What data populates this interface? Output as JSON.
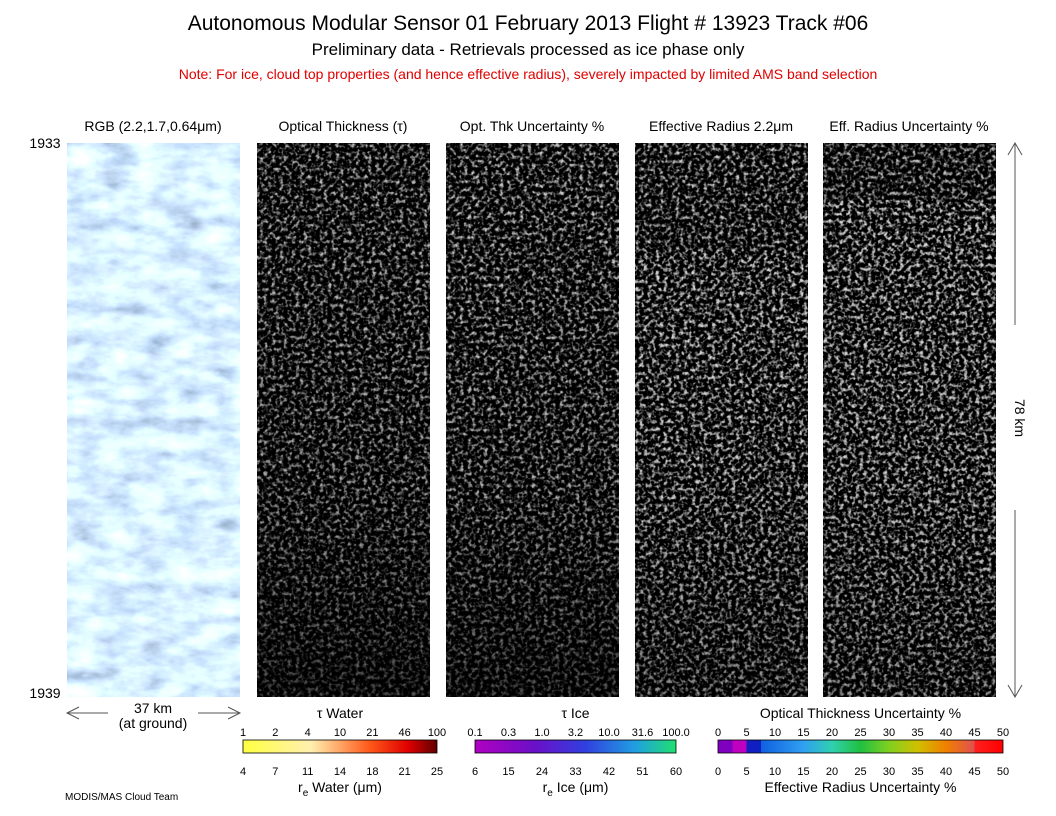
{
  "header": {
    "title": "Autonomous Modular Sensor  01 February 2013  Flight # 13923 Track #06",
    "subtitle": "Preliminary data - Retrievals processed as ice phase only",
    "note": "Note: For ice, cloud top properties (and hence effective radius), severely impacted by limited AMS band selection"
  },
  "panels": [
    {
      "title": "RGB (2.2,1.7,0.64μm)"
    },
    {
      "title": "Optical Thickness (τ)"
    },
    {
      "title": "Opt. Thk Uncertainty %"
    },
    {
      "title": "Effective Radius 2.2μm"
    },
    {
      "title": "Eff. Radius Uncertainty %"
    }
  ],
  "time_axis": {
    "start": "1933",
    "end": "1939"
  },
  "scale_x": {
    "distance": "37 km",
    "note": "(at ground)"
  },
  "scale_y": {
    "distance": "78 km"
  },
  "colorbars": [
    {
      "title_top": "τ Water",
      "top_ticks": [
        "1",
        "2",
        "4",
        "10",
        "21",
        "46",
        "100"
      ],
      "bottom_ticks": [
        "4",
        "7",
        "11",
        "14",
        "18",
        "21",
        "25"
      ],
      "title_bottom": {
        "symbol": "r",
        "subscript": "e",
        "text": " Water (μm)"
      }
    },
    {
      "title_top": "τ Ice",
      "top_ticks": [
        "0.1",
        "0.3",
        "1.0",
        "3.2",
        "10.0",
        "31.6",
        "100.0"
      ],
      "bottom_ticks": [
        "6",
        "15",
        "24",
        "33",
        "42",
        "51",
        "60"
      ],
      "title_bottom": {
        "symbol": "r",
        "subscript": "e",
        "text": " Ice (μm)"
      }
    },
    {
      "title_top": "Optical Thickness Uncertainty %",
      "top_ticks": [
        "0",
        "5",
        "10",
        "15",
        "20",
        "25",
        "30",
        "35",
        "40",
        "45",
        "50"
      ],
      "bottom_ticks": [
        "0",
        "5",
        "10",
        "15",
        "20",
        "25",
        "30",
        "35",
        "40",
        "45",
        "50"
      ],
      "title_bottom": {
        "text": "Effective Radius Uncertainty %"
      }
    }
  ],
  "credit": "MODIS/MAS Cloud Team"
}
